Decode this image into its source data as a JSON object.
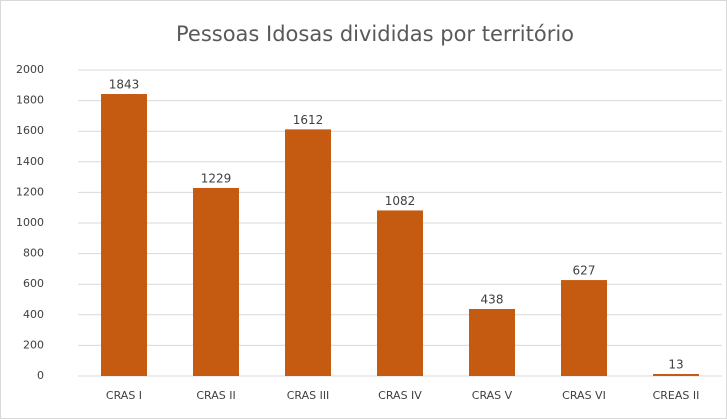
{
  "chart_data": {
    "type": "bar",
    "title": "Pessoas Idosas divididas por território",
    "categories": [
      "CRAS I",
      "CRAS II",
      "CRAS III",
      "CRAS IV",
      "CRAS V",
      "CRAS VI",
      "CREAS II"
    ],
    "values": [
      1843,
      1229,
      1612,
      1082,
      438,
      627,
      13
    ],
    "color": "#c55a11",
    "ylim": [
      0,
      2000
    ],
    "yticks": [
      0,
      200,
      400,
      600,
      800,
      1000,
      1200,
      1400,
      1600,
      1800,
      2000
    ],
    "grid": true
  }
}
